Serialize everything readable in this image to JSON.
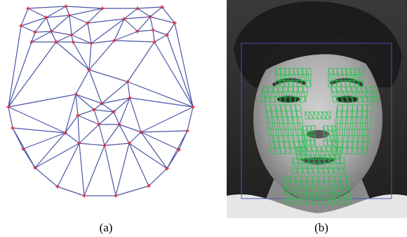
{
  "captions": {
    "a": "(a)",
    "b": "(b)"
  },
  "colors": {
    "mesh_edge": "#4a55a8",
    "mesh_vertex": "#e0303a",
    "face_mesh": "#22c24a",
    "face_box": "#4a55b0",
    "photo_bg": "#2e2e2e"
  }
}
